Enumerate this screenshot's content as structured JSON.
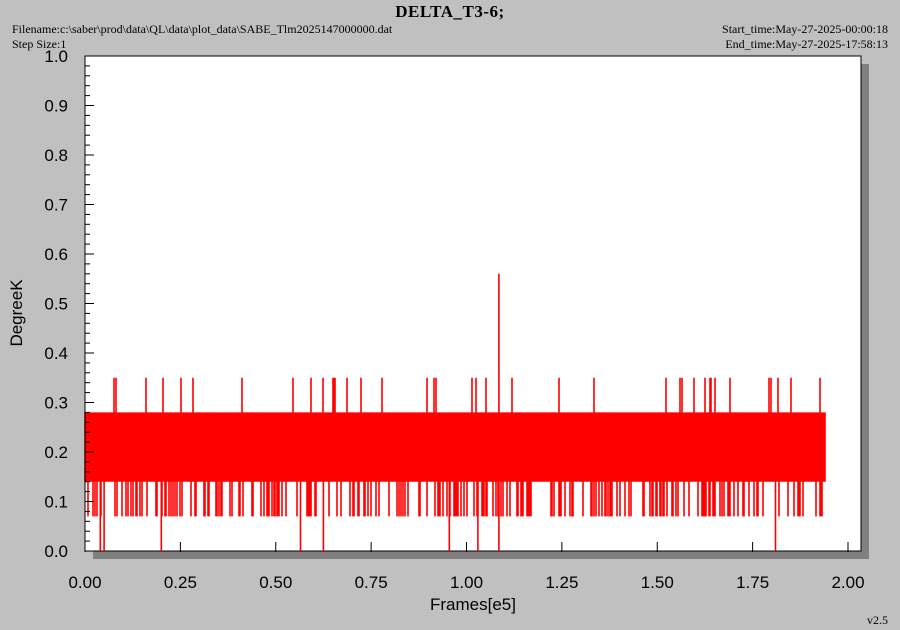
{
  "header": {
    "title": "DELTA_T3-6;",
    "filename": "Filename:c:\\saber\\prod\\data\\QL\\data\\plot_data\\SABE_Tlm2025147000000.dat",
    "step_size": "Step Size:1",
    "start_time": "Start_time:May-27-2025-00:00:18",
    "end_time": "End_time:May-27-2025-17:58:13"
  },
  "footer": {
    "version": "v2.5"
  },
  "colors": {
    "series": "#ff0000",
    "background": "#c0c0c0",
    "plot_area": "#ffffff",
    "shadow": "#808080"
  },
  "chart_data": {
    "type": "line",
    "title": "DELTA_T3-6;",
    "xlabel": "Frames[e5]",
    "ylabel": "DegreeK",
    "xlim": [
      0.0,
      2.0
    ],
    "ylim": [
      0.0,
      1.0
    ],
    "x_ticks": [
      "0.00",
      "0.25",
      "0.50",
      "0.75",
      "1.00",
      "1.25",
      "1.50",
      "1.75",
      "2.00"
    ],
    "y_ticks": [
      "0.0",
      "0.1",
      "0.2",
      "0.3",
      "0.4",
      "0.5",
      "0.6",
      "0.7",
      "0.8",
      "0.9",
      "1.0"
    ],
    "grid": false,
    "series": [
      {
        "color": "#ff0000",
        "x_range": [
          0.0,
          1.94
        ],
        "typical_range": [
          0.14,
          0.28
        ],
        "frequent_dips": 0.07,
        "occasional_spikes": 0.35,
        "max_spike": {
          "x": 1.085,
          "y": 0.56
        },
        "dips_to_zero_at": [
          0.04,
          0.05,
          0.2,
          0.565,
          0.625,
          0.955,
          1.03,
          1.085,
          1.81
        ]
      }
    ]
  }
}
